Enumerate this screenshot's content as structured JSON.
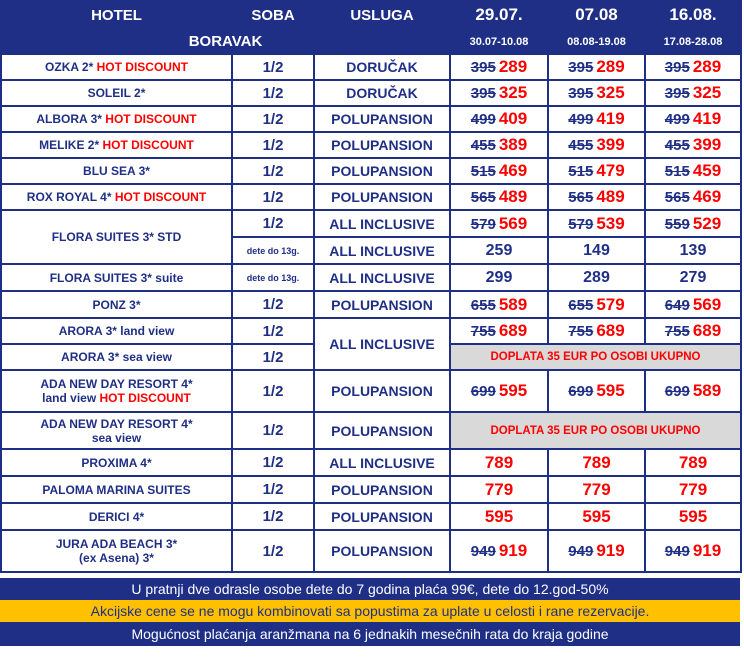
{
  "header": {
    "hotel": "HOTEL",
    "soba": "SOBA",
    "usluga": "USLUGA",
    "dates": [
      "29.07.",
      "07.08",
      "16.08."
    ],
    "boravak": "BORAVAK",
    "ranges": [
      "30.07-10.08",
      "08.08-19.08",
      "17.08-28.08"
    ]
  },
  "rows": {
    "ozka": {
      "name": "OZKA 2*",
      "hot": "HOT DISCOUNT",
      "soba": "1/2",
      "usluga": "DORUČAK",
      "p": [
        [
          "395",
          "289"
        ],
        [
          "395",
          "289"
        ],
        [
          "395",
          "289"
        ]
      ]
    },
    "soleil": {
      "name": "SOLEIL 2*",
      "soba": "1/2",
      "usluga": "DORUČAK",
      "p": [
        [
          "395",
          "325"
        ],
        [
          "395",
          "325"
        ],
        [
          "395",
          "325"
        ]
      ]
    },
    "albora": {
      "name": "ALBORA 3*",
      "hot": "HOT DISCOUNT",
      "soba": "1/2",
      "usluga": "POLUPANSION",
      "p": [
        [
          "499",
          "409"
        ],
        [
          "499",
          "419"
        ],
        [
          "499",
          "419"
        ]
      ]
    },
    "melike": {
      "name": "MELIKE 2*",
      "hot": "HOT DISCOUNT",
      "soba": "1/2",
      "usluga": "POLUPANSION",
      "p": [
        [
          "455",
          "389"
        ],
        [
          "455",
          "399"
        ],
        [
          "455",
          "399"
        ]
      ]
    },
    "blusea": {
      "name": "BLU SEA 3*",
      "soba": "1/2",
      "usluga": "POLUPANSION",
      "p": [
        [
          "515",
          "469"
        ],
        [
          "515",
          "479"
        ],
        [
          "515",
          "459"
        ]
      ]
    },
    "roxroyal": {
      "name": "ROX ROYAL 4*",
      "hot": "HOT DISCOUNT",
      "soba": "1/2",
      "usluga": "POLUPANSION",
      "p": [
        [
          "565",
          "489"
        ],
        [
          "565",
          "489"
        ],
        [
          "565",
          "469"
        ]
      ]
    },
    "flora": {
      "name": "FLORA SUITES 3* STD",
      "soba": "1/2",
      "usluga": "ALL INCLUSIVE",
      "p": [
        [
          "579",
          "569"
        ],
        [
          "579",
          "539"
        ],
        [
          "559",
          "529"
        ]
      ],
      "child_soba": "dete do 13g.",
      "child_usluga": "ALL INCLUSIVE",
      "child_p": [
        "259",
        "149",
        "139"
      ]
    },
    "florasuite": {
      "name": "FLORA SUITES 3* suite",
      "soba": "dete do 13g.",
      "usluga": "ALL INCLUSIVE",
      "p": [
        "299",
        "289",
        "279"
      ]
    },
    "ponz": {
      "name": "PONZ 3*",
      "soba": "1/2",
      "usluga": "POLUPANSION",
      "p": [
        [
          "655",
          "589"
        ],
        [
          "655",
          "579"
        ],
        [
          "649",
          "569"
        ]
      ]
    },
    "arora_land": {
      "name": "ARORA 3* land view",
      "soba": "1/2",
      "usluga": "ALL INCLUSIVE",
      "p": [
        [
          "755",
          "689"
        ],
        [
          "755",
          "689"
        ],
        [
          "755",
          "689"
        ]
      ]
    },
    "arora_sea": {
      "name": "ARORA 3* sea view",
      "soba": "1/2",
      "doplata": "DOPLATA 35 EUR PO OSOBI UKUPNO"
    },
    "ada_land": {
      "name1": "ADA NEW DAY RESORT 4*",
      "name2": "land view",
      "hot": "HOT DISCOUNT",
      "soba": "1/2",
      "usluga": "POLUPANSION",
      "p": [
        [
          "699",
          "595"
        ],
        [
          "699",
          "595"
        ],
        [
          "699",
          "589"
        ]
      ]
    },
    "ada_sea": {
      "name1": "ADA NEW DAY RESORT 4*",
      "name2": "sea view",
      "soba": "1/2",
      "usluga": "POLUPANSION",
      "doplata": "DOPLATA 35 EUR PO OSOBI UKUPNO"
    },
    "proxima": {
      "name": "PROXIMA 4*",
      "soba": "1/2",
      "usluga": "ALL INCLUSIVE",
      "p": [
        "789",
        "789",
        "789"
      ]
    },
    "paloma": {
      "name": "PALOMA MARINA SUITES",
      "soba": "1/2",
      "usluga": "POLUPANSION",
      "p": [
        "779",
        "779",
        "779"
      ]
    },
    "derici": {
      "name": "DERICI 4*",
      "soba": "1/2",
      "usluga": "POLUPANSION",
      "p": [
        "595",
        "595",
        "595"
      ]
    },
    "jura": {
      "name1": "JURA ADA BEACH 3*",
      "name2": "(ex Asena) 3*",
      "soba": "1/2",
      "usluga": "POLUPANSION",
      "p": [
        [
          "949",
          "919"
        ],
        [
          "949",
          "919"
        ],
        [
          "949",
          "919"
        ]
      ]
    }
  },
  "footer": {
    "line1": "U pratnji dve odrasle osobe  dete do 7 godina plaća 99€, dete do 12.god-50%",
    "line2": "Akcijske cene se ne mogu kombinovati sa popustima za uplate u celosti i rane rezervacije.",
    "line3": "Mogućnost plaćanja aranžmana na 6 jednakih mesečnih rata do kraja godine"
  },
  "colors": {
    "navy": "#1f2f86",
    "red": "#ff0000",
    "gold": "#ffc000",
    "gray": "#d9d9d9"
  }
}
